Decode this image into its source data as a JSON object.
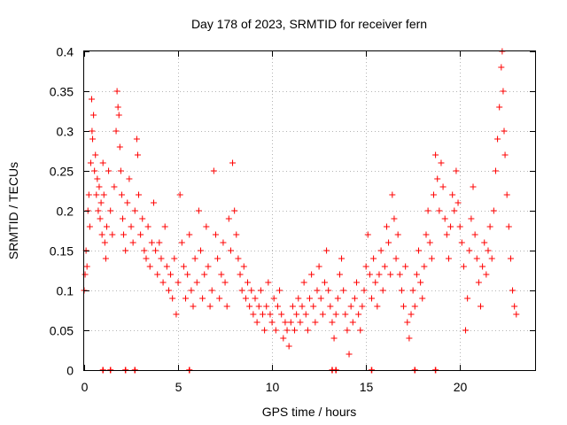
{
  "chart_data": {
    "type": "scatter",
    "title": "Day 178 of 2023, SRMTID for receiver fern",
    "xlabel": "GPS time / hours",
    "ylabel": "SRMTID / TECUs",
    "xlim": [
      0,
      24
    ],
    "ylim": [
      0,
      0.4
    ],
    "xticks": [
      0,
      5,
      10,
      15,
      20
    ],
    "xtick_labels": [
      "0",
      "5",
      "10",
      "15",
      "20"
    ],
    "yticks": [
      0,
      0.05,
      0.1,
      0.15,
      0.2,
      0.25,
      0.3,
      0.35,
      0.4
    ],
    "ytick_labels": [
      "0",
      "0.05",
      "0.1",
      "0.15",
      "0.2",
      "0.25",
      "0.3",
      "0.35",
      "0.4"
    ],
    "grid": true,
    "marker": "plus",
    "color": "#ff0000",
    "series": [
      {
        "name": "SRMTID",
        "points": [
          [
            0.0,
            0.1
          ],
          [
            0.05,
            0.12
          ],
          [
            0.1,
            0.15
          ],
          [
            0.15,
            0.13
          ],
          [
            0.2,
            0.2
          ],
          [
            0.25,
            0.22
          ],
          [
            0.3,
            0.18
          ],
          [
            0.35,
            0.26
          ],
          [
            0.4,
            0.34
          ],
          [
            0.42,
            0.3
          ],
          [
            0.45,
            0.29
          ],
          [
            0.5,
            0.32
          ],
          [
            0.55,
            0.25
          ],
          [
            0.6,
            0.27
          ],
          [
            0.65,
            0.22
          ],
          [
            0.7,
            0.24
          ],
          [
            0.75,
            0.2
          ],
          [
            0.8,
            0.23
          ],
          [
            0.85,
            0.19
          ],
          [
            0.9,
            0.21
          ],
          [
            0.95,
            0.17
          ],
          [
            1.0,
            0.26
          ],
          [
            1.05,
            0.22
          ],
          [
            1.1,
            0.16
          ],
          [
            1.15,
            0.14
          ],
          [
            1.2,
            0.18
          ],
          [
            1.3,
            0.25
          ],
          [
            1.4,
            0.2
          ],
          [
            1.5,
            0.17
          ],
          [
            1.6,
            0.23
          ],
          [
            1.7,
            0.3
          ],
          [
            1.75,
            0.35
          ],
          [
            1.8,
            0.33
          ],
          [
            1.85,
            0.32
          ],
          [
            1.9,
            0.28
          ],
          [
            1.95,
            0.25
          ],
          [
            2.0,
            0.22
          ],
          [
            2.05,
            0.19
          ],
          [
            2.1,
            0.17
          ],
          [
            2.2,
            0.15
          ],
          [
            2.3,
            0.21
          ],
          [
            2.4,
            0.24
          ],
          [
            2.5,
            0.18
          ],
          [
            2.6,
            0.16
          ],
          [
            2.7,
            0.2
          ],
          [
            2.8,
            0.29
          ],
          [
            2.85,
            0.27
          ],
          [
            2.9,
            0.22
          ],
          [
            3.0,
            0.17
          ],
          [
            3.1,
            0.19
          ],
          [
            3.2,
            0.15
          ],
          [
            3.3,
            0.14
          ],
          [
            3.4,
            0.18
          ],
          [
            3.5,
            0.13
          ],
          [
            3.6,
            0.16
          ],
          [
            3.7,
            0.21
          ],
          [
            3.8,
            0.15
          ],
          [
            3.9,
            0.12
          ],
          [
            4.0,
            0.16
          ],
          [
            4.1,
            0.14
          ],
          [
            4.2,
            0.11
          ],
          [
            4.3,
            0.18
          ],
          [
            4.4,
            0.13
          ],
          [
            4.5,
            0.1
          ],
          [
            4.6,
            0.12
          ],
          [
            4.7,
            0.09
          ],
          [
            4.8,
            0.14
          ],
          [
            4.9,
            0.07
          ],
          [
            5.0,
            0.11
          ],
          [
            5.1,
            0.22
          ],
          [
            5.2,
            0.16
          ],
          [
            5.3,
            0.13
          ],
          [
            5.4,
            0.09
          ],
          [
            5.5,
            0.12
          ],
          [
            5.6,
            0.17
          ],
          [
            5.7,
            0.1
          ],
          [
            5.8,
            0.08
          ],
          [
            5.9,
            0.14
          ],
          [
            6.0,
            0.11
          ],
          [
            6.1,
            0.2
          ],
          [
            6.2,
            0.15
          ],
          [
            6.3,
            0.09
          ],
          [
            6.4,
            0.12
          ],
          [
            6.5,
            0.18
          ],
          [
            6.6,
            0.13
          ],
          [
            6.7,
            0.08
          ],
          [
            6.8,
            0.1
          ],
          [
            6.9,
            0.25
          ],
          [
            7.0,
            0.17
          ],
          [
            7.1,
            0.14
          ],
          [
            7.2,
            0.09
          ],
          [
            7.3,
            0.12
          ],
          [
            7.4,
            0.16
          ],
          [
            7.5,
            0.11
          ],
          [
            7.6,
            0.08
          ],
          [
            7.7,
            0.19
          ],
          [
            7.8,
            0.15
          ],
          [
            7.9,
            0.26
          ],
          [
            8.0,
            0.2
          ],
          [
            8.1,
            0.17
          ],
          [
            8.2,
            0.14
          ],
          [
            8.3,
            0.12
          ],
          [
            8.4,
            0.1
          ],
          [
            8.5,
            0.13
          ],
          [
            8.6,
            0.09
          ],
          [
            8.7,
            0.11
          ],
          [
            8.8,
            0.08
          ],
          [
            8.9,
            0.1
          ],
          [
            9.0,
            0.07
          ],
          [
            9.1,
            0.09
          ],
          [
            9.2,
            0.06
          ],
          [
            9.3,
            0.08
          ],
          [
            9.4,
            0.1
          ],
          [
            9.5,
            0.07
          ],
          [
            9.6,
            0.05
          ],
          [
            9.7,
            0.08
          ],
          [
            9.8,
            0.11
          ],
          [
            9.9,
            0.07
          ],
          [
            10.0,
            0.06
          ],
          [
            10.1,
            0.09
          ],
          [
            10.2,
            0.05
          ],
          [
            10.3,
            0.08
          ],
          [
            10.4,
            0.1
          ],
          [
            10.5,
            0.07
          ],
          [
            10.6,
            0.04
          ],
          [
            10.7,
            0.06
          ],
          [
            10.8,
            0.05
          ],
          [
            10.9,
            0.03
          ],
          [
            11.0,
            0.06
          ],
          [
            11.1,
            0.08
          ],
          [
            11.2,
            0.05
          ],
          [
            11.3,
            0.07
          ],
          [
            11.4,
            0.09
          ],
          [
            11.5,
            0.06
          ],
          [
            11.6,
            0.08
          ],
          [
            11.7,
            0.11
          ],
          [
            11.8,
            0.07
          ],
          [
            11.9,
            0.05
          ],
          [
            12.0,
            0.09
          ],
          [
            12.1,
            0.12
          ],
          [
            12.2,
            0.08
          ],
          [
            12.3,
            0.06
          ],
          [
            12.4,
            0.1
          ],
          [
            12.5,
            0.13
          ],
          [
            12.6,
            0.09
          ],
          [
            12.7,
            0.07
          ],
          [
            12.8,
            0.11
          ],
          [
            12.9,
            0.15
          ],
          [
            13.0,
            0.1
          ],
          [
            13.1,
            0.08
          ],
          [
            13.2,
            0.06
          ],
          [
            13.3,
            0.04
          ],
          [
            13.4,
            0.07
          ],
          [
            13.5,
            0.09
          ],
          [
            13.6,
            0.12
          ],
          [
            13.7,
            0.14
          ],
          [
            13.8,
            0.1
          ],
          [
            13.9,
            0.07
          ],
          [
            14.0,
            0.05
          ],
          [
            14.1,
            0.02
          ],
          [
            14.2,
            0.08
          ],
          [
            14.3,
            0.06
          ],
          [
            14.4,
            0.09
          ],
          [
            14.5,
            0.11
          ],
          [
            14.6,
            0.07
          ],
          [
            14.7,
            0.05
          ],
          [
            14.8,
            0.08
          ],
          [
            14.9,
            0.1
          ],
          [
            15.0,
            0.13
          ],
          [
            15.1,
            0.17
          ],
          [
            15.2,
            0.12
          ],
          [
            15.3,
            0.09
          ],
          [
            15.4,
            0.14
          ],
          [
            15.5,
            0.11
          ],
          [
            15.6,
            0.08
          ],
          [
            15.7,
            0.12
          ],
          [
            15.8,
            0.15
          ],
          [
            15.9,
            0.1
          ],
          [
            16.0,
            0.13
          ],
          [
            16.1,
            0.18
          ],
          [
            16.2,
            0.16
          ],
          [
            16.3,
            0.12
          ],
          [
            16.4,
            0.22
          ],
          [
            16.5,
            0.19
          ],
          [
            16.6,
            0.14
          ],
          [
            16.7,
            0.17
          ],
          [
            16.8,
            0.12
          ],
          [
            16.9,
            0.1
          ],
          [
            17.0,
            0.08
          ],
          [
            17.1,
            0.13
          ],
          [
            17.2,
            0.06
          ],
          [
            17.3,
            0.04
          ],
          [
            17.4,
            0.07
          ],
          [
            17.5,
            0.1
          ],
          [
            17.6,
            0.08
          ],
          [
            17.7,
            0.12
          ],
          [
            17.8,
            0.15
          ],
          [
            17.9,
            0.11
          ],
          [
            18.0,
            0.09
          ],
          [
            18.1,
            0.13
          ],
          [
            18.2,
            0.17
          ],
          [
            18.3,
            0.2
          ],
          [
            18.4,
            0.16
          ],
          [
            18.5,
            0.14
          ],
          [
            18.6,
            0.22
          ],
          [
            18.7,
            0.27
          ],
          [
            18.8,
            0.24
          ],
          [
            18.9,
            0.2
          ],
          [
            19.0,
            0.26
          ],
          [
            19.1,
            0.23
          ],
          [
            19.2,
            0.19
          ],
          [
            19.3,
            0.17
          ],
          [
            19.4,
            0.14
          ],
          [
            19.5,
            0.18
          ],
          [
            19.6,
            0.22
          ],
          [
            19.7,
            0.2
          ],
          [
            19.8,
            0.25
          ],
          [
            19.9,
            0.21
          ],
          [
            20.0,
            0.18
          ],
          [
            20.1,
            0.16
          ],
          [
            20.2,
            0.13
          ],
          [
            20.3,
            0.05
          ],
          [
            20.4,
            0.09
          ],
          [
            20.5,
            0.15
          ],
          [
            20.6,
            0.19
          ],
          [
            20.7,
            0.23
          ],
          [
            20.8,
            0.17
          ],
          [
            20.9,
            0.14
          ],
          [
            21.0,
            0.11
          ],
          [
            21.1,
            0.08
          ],
          [
            21.2,
            0.13
          ],
          [
            21.3,
            0.16
          ],
          [
            21.4,
            0.12
          ],
          [
            21.5,
            0.15
          ],
          [
            21.6,
            0.18
          ],
          [
            21.7,
            0.14
          ],
          [
            21.8,
            0.2
          ],
          [
            21.9,
            0.25
          ],
          [
            22.0,
            0.29
          ],
          [
            22.1,
            0.33
          ],
          [
            22.2,
            0.38
          ],
          [
            22.25,
            0.4
          ],
          [
            22.3,
            0.35
          ],
          [
            22.35,
            0.3
          ],
          [
            22.4,
            0.27
          ],
          [
            22.5,
            0.22
          ],
          [
            22.6,
            0.18
          ],
          [
            22.7,
            0.14
          ],
          [
            22.8,
            0.1
          ],
          [
            22.9,
            0.08
          ],
          [
            23.0,
            0.07
          ]
        ],
        "zero_points": [
          1.0,
          1.4,
          2.2,
          2.7,
          5.6,
          13.2,
          13.4,
          15.3,
          17.6,
          18.7
        ]
      }
    ]
  }
}
